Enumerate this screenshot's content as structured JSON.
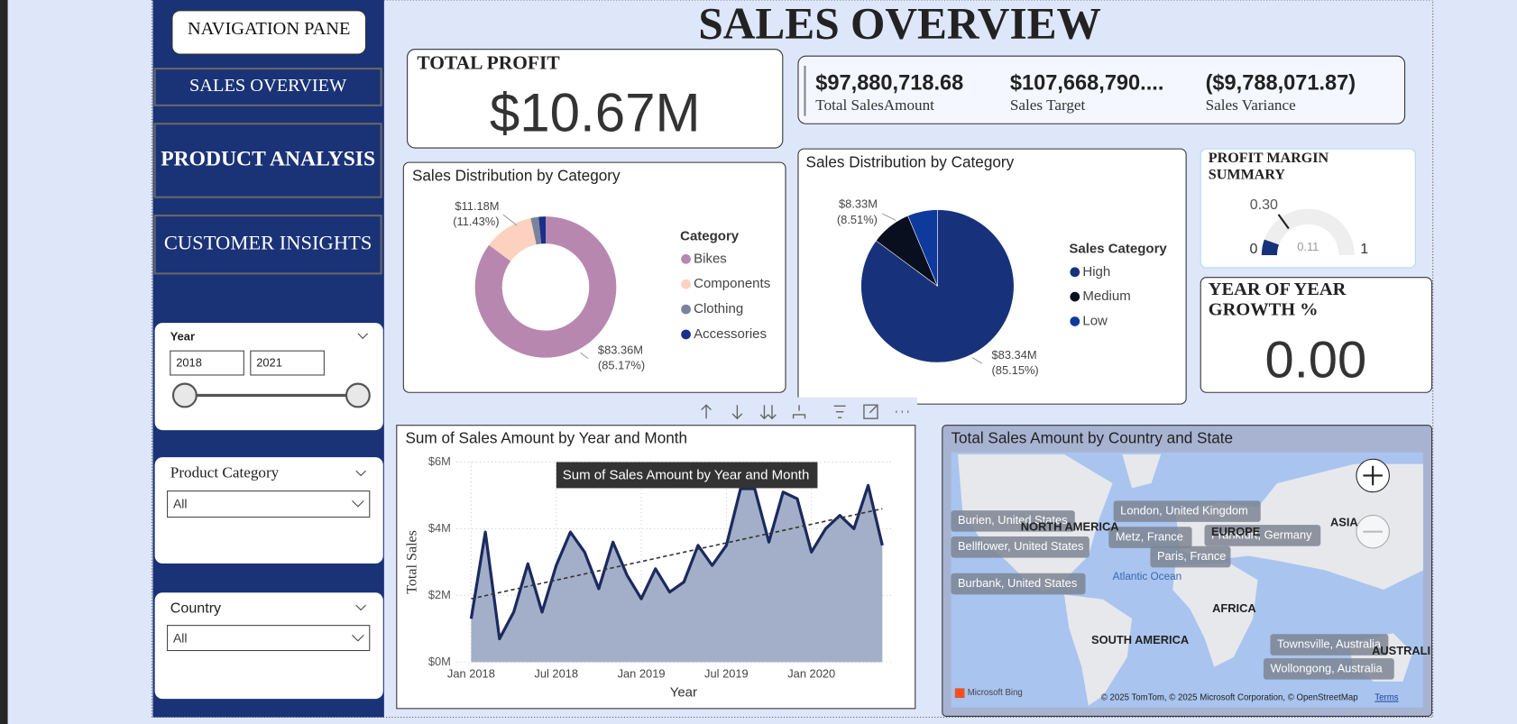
{
  "nav": {
    "title": "NAVIGATION PANE",
    "items": [
      "SALES OVERVIEW",
      "PRODUCT ANALYSIS",
      "CUSTOMER INSIGHTS"
    ]
  },
  "header": {
    "title": "SALES OVERVIEW"
  },
  "filters": {
    "year": {
      "label": "Year",
      "from": "2018",
      "to": "2021"
    },
    "product_category": {
      "label": "Product Category",
      "value": "All"
    },
    "country": {
      "label": "Country",
      "value": "All"
    }
  },
  "cards": {
    "total_profit": {
      "title": "TOTAL PROFIT",
      "value": "$10.67M"
    },
    "multi": [
      {
        "value": "$97,880,718.68",
        "label": "Total SalesAmount"
      },
      {
        "value": "$107,668,790....",
        "label": "Sales Target"
      },
      {
        "value": "($9,788,071.87)",
        "label": "Sales Variance"
      }
    ],
    "yoy": {
      "title": "YEAR OF YEAR GROWTH %",
      "value": "0.00"
    }
  },
  "chart_data": [
    {
      "type": "donut",
      "title": "Sales Distribution by Category",
      "legend_title": "Category",
      "categories": [
        "Bikes",
        "Components",
        "Clothing",
        "Accessories"
      ],
      "values": [
        83.36,
        11.18,
        1.78,
        1.56
      ],
      "value_labels": [
        "$83.36M",
        "$11.18M",
        null,
        null
      ],
      "percent_labels": [
        "(85.17%)",
        "(11.43%)",
        null,
        null
      ],
      "colors": [
        "#b887b0",
        "#fcd1bf",
        "#7a839e",
        "#1a2e8a"
      ]
    },
    {
      "type": "pie",
      "title": "Sales Distribution by Category",
      "legend_title": "Sales Category",
      "categories": [
        "High",
        "Medium",
        "Low"
      ],
      "values": [
        83.34,
        8.33,
        6.21
      ],
      "value_labels": [
        "$83.34M",
        "$8.33M",
        null
      ],
      "percent_labels": [
        "(85.15%)",
        "(8.51%)",
        null
      ],
      "colors": [
        "#17327a",
        "#0a0f1f",
        "#0e3a9e"
      ]
    },
    {
      "type": "gauge",
      "title": "PROFIT MARGIN SUMMARY",
      "min": 0,
      "max": 1,
      "value": 0.11,
      "target": {
        "value": 0.3,
        "label": "0.30"
      },
      "color": "#17327a"
    },
    {
      "type": "line",
      "title": "Sum of Sales Amount by Year and Month",
      "tooltip": "Sum of Sales Amount by Year and Month",
      "x_label": "Year",
      "y_label": "Total Sales",
      "x": [
        "Jan 2018",
        "Feb 2018",
        "Mar 2018",
        "Apr 2018",
        "May 2018",
        "Jun 2018",
        "Jul 2018",
        "Aug 2018",
        "Sep 2018",
        "Oct 2018",
        "Nov 2018",
        "Dec 2018",
        "Jan 2019",
        "Feb 2019",
        "Mar 2019",
        "Apr 2019",
        "May 2019",
        "Jun 2019",
        "Jul 2019",
        "Aug 2019",
        "Sep 2019",
        "Oct 2019",
        "Nov 2019",
        "Dec 2019",
        "Jan 2020",
        "Feb 2020",
        "Mar 2020",
        "Apr 2020",
        "May 2020",
        "Jun 2020"
      ],
      "values": [
        1.3,
        3.9,
        0.7,
        1.5,
        2.95,
        1.5,
        2.9,
        3.9,
        3.3,
        2.2,
        3.6,
        2.6,
        1.9,
        2.8,
        2.1,
        2.4,
        3.5,
        2.9,
        3.5,
        5.2,
        5.2,
        3.6,
        5.1,
        4.9,
        3.3,
        4.0,
        4.4,
        4.0,
        5.3,
        3.5
      ],
      "trend": [
        1.9,
        4.6
      ],
      "xticks": [
        "Jan 2018",
        "Jul 2018",
        "Jan 2019",
        "Jul 2019",
        "Jan 2020"
      ],
      "ylim": [
        0,
        6
      ],
      "yticks": [
        {
          "value": 0,
          "label": "$0M"
        },
        {
          "value": 2,
          "label": "$2M"
        },
        {
          "value": 4,
          "label": "$4M"
        },
        {
          "value": 6,
          "label": "$6M"
        }
      ],
      "grid": true,
      "color": "#1b2a5e",
      "area_color": "#a3aec8"
    }
  ],
  "map": {
    "title": "Total Sales Amount by Country and State",
    "place_labels": [
      "Burien, United States",
      "Bellflower, United States",
      "Burbank, United States",
      "London, United Kingdom",
      "Metz, France",
      "Frankfurt, Germany",
      "Paris, France",
      "Townsville, Australia",
      "Wollongong, Australia"
    ],
    "region_labels": [
      "NORTH AMERICA",
      "EUROPE",
      "ASIA",
      "AFRICA",
      "SOUTH AMERICA",
      "AUSTRALI",
      "Atlantic Ocean"
    ],
    "brand": "Microsoft Bing",
    "attribution": "© 2025 TomTom, © 2025 Microsoft Corporation, © OpenStreetMap",
    "terms": "Terms"
  }
}
